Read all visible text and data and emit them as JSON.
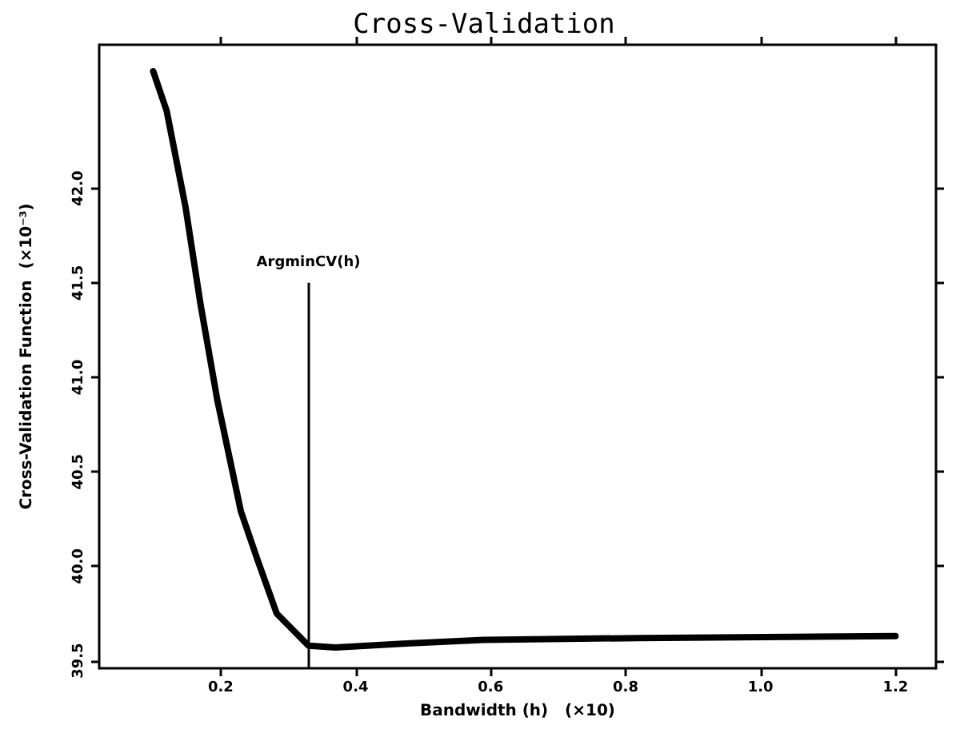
{
  "chart_data": {
    "type": "line",
    "title": "Cross-Validation",
    "xlabel": "Bandwidth (h)   (×10)",
    "ylabel": "Cross-Validation Function  (×10⁻³)",
    "x": [
      0.1,
      0.12,
      0.148,
      0.17,
      0.195,
      0.23,
      0.255,
      0.283,
      0.33,
      0.37,
      0.47,
      0.59,
      0.82,
      1.2
    ],
    "series": [
      {
        "color": "#000000",
        "values": [
          42.62,
          42.41,
          41.9,
          41.39,
          40.88,
          40.29,
          40.03,
          39.75,
          39.58,
          39.57,
          39.59,
          39.61,
          39.62,
          39.63
        ]
      }
    ],
    "xlim": [
      0.02,
      1.26
    ],
    "xticks": [
      0.2,
      0.4,
      0.6,
      0.8,
      {
        "value": 1,
        "label": "1.0"
      },
      1.2
    ],
    "ylim": [
      39.46,
      42.76
    ],
    "yticks": [
      39.5,
      {
        "value": 40,
        "label": "40.0"
      },
      40.5,
      {
        "value": 41,
        "label": "41.0"
      },
      41.5,
      {
        "value": 42,
        "label": "42.0"
      }
    ],
    "ref_lines": [
      {
        "axis": "x",
        "value": 0.33,
        "color": "#000000"
      }
    ],
    "annotations": [
      {
        "text": "ArgminCV(h)",
        "x": 0.33,
        "y": 41.5
      }
    ],
    "grid": false,
    "marker": "none",
    "line_style": "solid"
  }
}
